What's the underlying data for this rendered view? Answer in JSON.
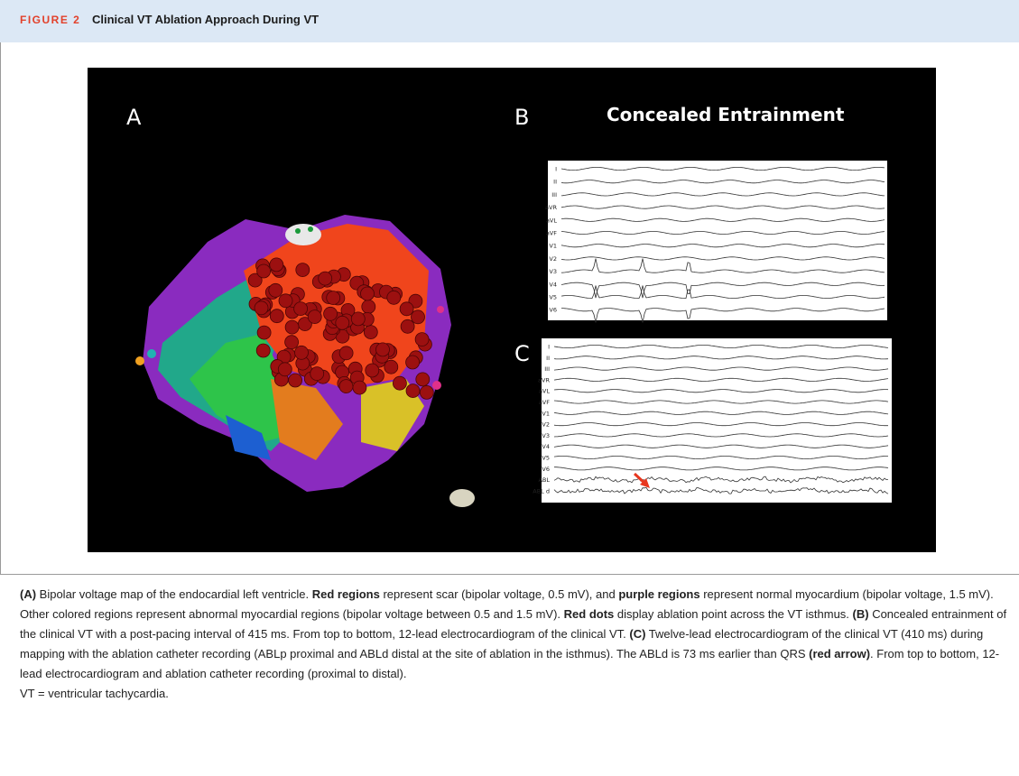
{
  "header": {
    "label": "FIGURE 2",
    "title": "Clinical VT Ablation Approach During VT"
  },
  "figure": {
    "panels": [
      {
        "label": "A"
      },
      {
        "label": "B",
        "title": "Concealed Entrainment",
        "leads": [
          "I",
          "II",
          "III",
          "aVR",
          "aVL",
          "aVF",
          "V1",
          "V2",
          "V3",
          "V4",
          "V5",
          "V6"
        ]
      },
      {
        "label": "C",
        "leads": [
          "I",
          "II",
          "III",
          "aVR",
          "aVL",
          "aVF",
          "V1",
          "V2",
          "V3",
          "V4",
          "V5",
          "V6",
          "ABL",
          "ABL d"
        ]
      }
    ]
  },
  "caption": {
    "segments": [
      {
        "text": "(A)",
        "bold": true
      },
      {
        "text": " Bipolar voltage map of the endocardial left ventricle. ",
        "bold": false
      },
      {
        "text": "Red regions",
        "bold": true
      },
      {
        "text": " represent scar (bipolar voltage, 0.5 mV), and ",
        "bold": false
      },
      {
        "text": "purple regions",
        "bold": true
      },
      {
        "text": " represent normal myocardium (bipolar voltage, 1.5 mV). Other colored regions represent abnormal myocardial regions (bipolar voltage between 0.5 and 1.5 mV). ",
        "bold": false
      },
      {
        "text": "Red dots",
        "bold": true
      },
      {
        "text": " display ablation point across the VT isthmus. ",
        "bold": false
      },
      {
        "text": "(B)",
        "bold": true
      },
      {
        "text": " Concealed entrainment of the clinical VT with a post-pacing interval of 415 ms. From top to bottom, 12-lead electrocardiogram of the clinical VT. ",
        "bold": false
      },
      {
        "text": "(C)",
        "bold": true
      },
      {
        "text": " Twelve-lead electrocardiogram of the clinical VT (410 ms) during mapping with the ablation catheter recording (ABLp proximal and ABLd distal at the site of ablation in the isthmus). The ABLd is 73 ms earlier than QRS ",
        "bold": false
      },
      {
        "text": "(red arrow)",
        "bold": true
      },
      {
        "text": ". From top to bottom, 12-lead electrocardiogram and ablation catheter recording (proximal to distal).",
        "bold": false
      }
    ],
    "note": "VT = ventricular tachycardia."
  }
}
